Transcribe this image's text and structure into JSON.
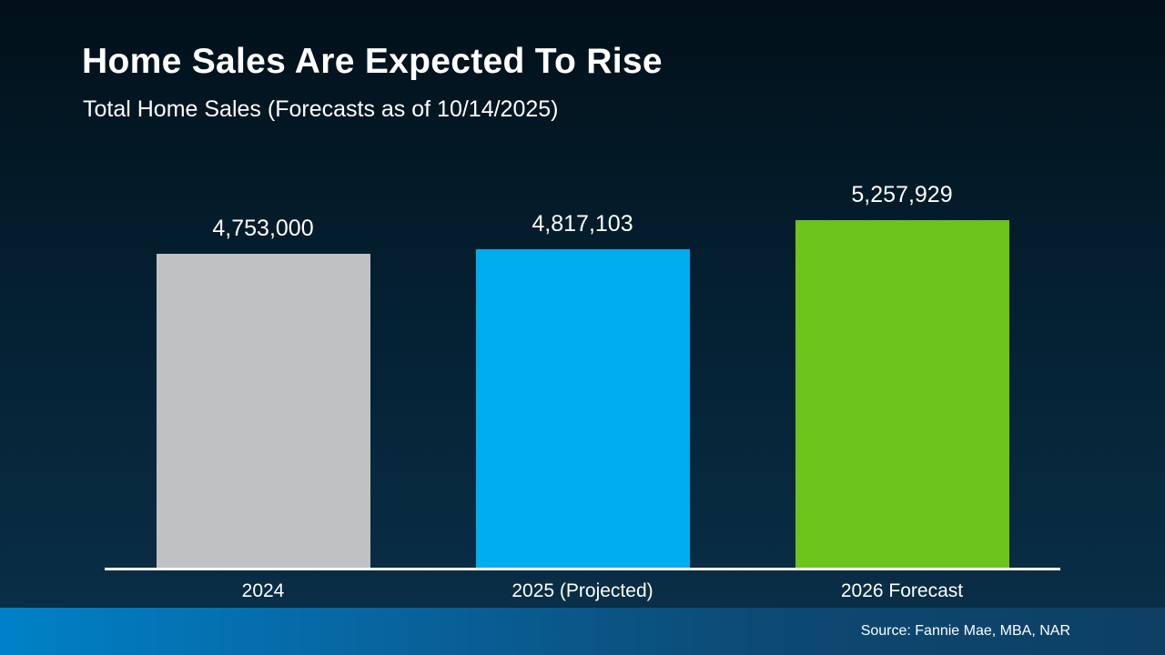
{
  "slide": {
    "title": "Home Sales Are Expected To Rise",
    "subtitle": "Total Home Sales (Forecasts as of 10/14/2025)",
    "source": "Source: Fannie Mae, MBA, NAR"
  },
  "chart_data": {
    "type": "bar",
    "title": "Home Sales Are Expected To Rise",
    "subtitle": "Total Home Sales (Forecasts as of 10/14/2025)",
    "categories": [
      "2024",
      "2025 (Projected)",
      "2026 Forecast"
    ],
    "values": [
      4753000,
      4817103,
      5257929
    ],
    "value_labels": [
      "4,753,000",
      "4,817,103",
      "5,257,929"
    ],
    "bar_colors": [
      "#bfc1c3",
      "#00aeef",
      "#6cc41c"
    ],
    "xlabel": "",
    "ylabel": "",
    "ylim": [
      0,
      5257929
    ],
    "grid": false,
    "legend": false,
    "annotation": "Source: Fannie Mae, MBA, NAR"
  },
  "colors": {
    "background_top": "#021019",
    "background_bottom": "#0a3049",
    "footer_gradient_left": "#0081c7",
    "footer_gradient_right": "#0d3f63",
    "baseline": "#ffffff",
    "text": "#ffffff"
  }
}
